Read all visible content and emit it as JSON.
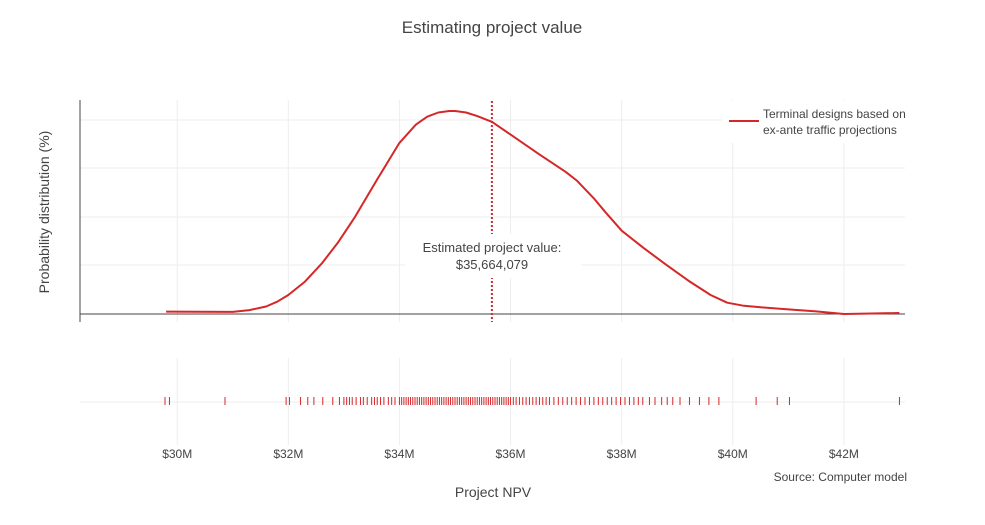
{
  "chart_data": {
    "type": "line",
    "title": "Estimating project value",
    "xlabel": "Project NPV",
    "ylabel": "Probability distribution (%)",
    "xlim": [
      28.25,
      43.1
    ],
    "x_unit": "$M",
    "x_ticks": [
      {
        "value": 30,
        "label": "$30M"
      },
      {
        "value": 32,
        "label": "$32M"
      },
      {
        "value": 34,
        "label": "$34M"
      },
      {
        "value": 36,
        "label": "$36M"
      },
      {
        "value": 38,
        "label": "$38M"
      },
      {
        "value": 40,
        "label": "$40M"
      },
      {
        "value": 42,
        "label": "$42M"
      }
    ],
    "y_tick_labels_shown": false,
    "grid": true,
    "legend_position": "top-right",
    "series": [
      {
        "name": "Terminal designs based on ex-ante traffic projections",
        "name_lines": [
          "Terminal designs based on",
          "ex-ante traffic projections"
        ],
        "color": "#d62728",
        "x": [
          29.8,
          30.4,
          31.0,
          31.3,
          31.6,
          31.8,
          32.0,
          32.3,
          32.6,
          32.9,
          33.2,
          33.6,
          34.0,
          34.3,
          34.5,
          34.7,
          34.9,
          35.0,
          35.2,
          35.4,
          35.664,
          36.0,
          36.5,
          37.0,
          37.2,
          37.5,
          37.7,
          38.0,
          38.4,
          38.8,
          39.2,
          39.6,
          39.9,
          40.2,
          40.5,
          41.0,
          41.5,
          42.0,
          42.5,
          43.0
        ],
        "y": [
          0.0046,
          0.0043,
          0.004,
          0.0075,
          0.0145,
          0.024,
          0.037,
          0.063,
          0.098,
          0.14,
          0.189,
          0.262,
          0.333,
          0.369,
          0.384,
          0.392,
          0.395,
          0.395,
          0.392,
          0.385,
          0.374,
          0.349,
          0.312,
          0.276,
          0.259,
          0.225,
          0.199,
          0.162,
          0.128,
          0.096,
          0.065,
          0.037,
          0.022,
          0.016,
          0.013,
          0.009,
          0.005,
          0.0,
          0.001,
          0.002
        ]
      }
    ],
    "rug": [
      29.78,
      29.86,
      30.86,
      31.96,
      32.02,
      32.22,
      32.35,
      32.46,
      32.62,
      32.8,
      32.92,
      33.0,
      33.05,
      33.1,
      33.15,
      33.22,
      33.3,
      33.35,
      33.42,
      33.5,
      33.55,
      33.6,
      33.66,
      33.72,
      33.8,
      33.86,
      33.92,
      34.0,
      34.04,
      34.08,
      34.12,
      34.16,
      34.2,
      34.24,
      34.28,
      34.32,
      34.36,
      34.4,
      34.44,
      34.48,
      34.52,
      34.56,
      34.6,
      34.64,
      34.68,
      34.72,
      34.76,
      34.8,
      34.84,
      34.88,
      34.92,
      34.96,
      35.0,
      35.04,
      35.08,
      35.12,
      35.16,
      35.2,
      35.24,
      35.28,
      35.32,
      35.36,
      35.4,
      35.44,
      35.48,
      35.52,
      35.56,
      35.6,
      35.64,
      35.68,
      35.72,
      35.76,
      35.8,
      35.84,
      35.88,
      35.92,
      35.96,
      36.0,
      36.05,
      36.1,
      36.16,
      36.22,
      36.28,
      36.34,
      36.4,
      36.46,
      36.52,
      36.58,
      36.64,
      36.7,
      36.78,
      36.86,
      36.94,
      37.02,
      37.1,
      37.18,
      37.26,
      37.34,
      37.42,
      37.5,
      37.58,
      37.66,
      37.74,
      37.82,
      37.9,
      37.98,
      38.06,
      38.14,
      38.22,
      38.3,
      38.38,
      38.5,
      38.6,
      38.72,
      38.82,
      38.92,
      39.05,
      39.22,
      39.4,
      39.57,
      39.75,
      40.42,
      40.8,
      41.02,
      43.0
    ],
    "vline": {
      "x": 35.664079
    },
    "annotation": {
      "line1": "Estimated project value:",
      "line2": "$35,664,079"
    },
    "source_note": "Source: Computer model"
  }
}
